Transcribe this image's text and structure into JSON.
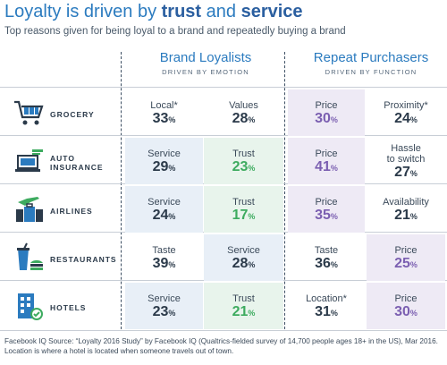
{
  "title": {
    "prefix": "Loyalty is driven by ",
    "bold1": "trust",
    "mid": " and ",
    "bold2": "service"
  },
  "subtitle": "Top reasons given for being loyal to a brand and repeatedly buying a brand",
  "columns": [
    {
      "heading": "Brand Loyalists",
      "sub": "DRIVEN BY EMOTION"
    },
    {
      "heading": "Repeat Purchasers",
      "sub": "DRIVEN BY FUNCTION"
    }
  ],
  "rows": [
    {
      "label": "GROCERY",
      "icon": "shopping-cart-icon",
      "cells": [
        {
          "label": "Local*",
          "value": "33"
        },
        {
          "label": "Values",
          "value": "28"
        },
        {
          "label": "Price",
          "value": "30"
        },
        {
          "label": "Proximity*",
          "value": "24"
        }
      ]
    },
    {
      "label": "AUTO\nINSURANCE",
      "icon": "laptop-insurance-icon",
      "cells": [
        {
          "label": "Service",
          "value": "29"
        },
        {
          "label": "Trust",
          "value": "23"
        },
        {
          "label": "Price",
          "value": "41"
        },
        {
          "label": "Hassle\nto switch",
          "value": "27"
        }
      ]
    },
    {
      "label": "AIRLINES",
      "icon": "airplane-luggage-icon",
      "cells": [
        {
          "label": "Service",
          "value": "24"
        },
        {
          "label": "Trust",
          "value": "17"
        },
        {
          "label": "Price",
          "value": "35"
        },
        {
          "label": "Availability",
          "value": "21"
        }
      ]
    },
    {
      "label": "RESTAURANTS",
      "icon": "drink-burger-icon",
      "cells": [
        {
          "label": "Taste",
          "value": "39"
        },
        {
          "label": "Service",
          "value": "28"
        },
        {
          "label": "Taste",
          "value": "36"
        },
        {
          "label": "Price",
          "value": "25"
        }
      ]
    },
    {
      "label": "HOTELS",
      "icon": "hotel-building-icon",
      "cells": [
        {
          "label": "Service",
          "value": "23"
        },
        {
          "label": "Trust",
          "value": "21"
        },
        {
          "label": "Location*",
          "value": "31"
        },
        {
          "label": "Price",
          "value": "30"
        }
      ]
    }
  ],
  "percent_sign": "%",
  "footer": [
    "Facebook IQ Source: “Loyalty 2016 Study” by Facebook IQ (Qualtrics-fielded survey of 14,700 people ages 18+ in the US), Mar 2016.",
    "Location is where a hotel is located when someone travels out of town."
  ],
  "colors": {
    "accent": "#2b7bbf",
    "trust": "#3dab5f",
    "price": "#7b5fb1",
    "emotion": "#2b3a4a"
  },
  "chart_data": {
    "type": "table",
    "title": "Loyalty is driven by trust and service",
    "subtitle": "Top reasons given for being loyal to a brand and repeatedly buying a brand",
    "groups": [
      "Brand Loyalists",
      "Repeat Purchasers"
    ],
    "categories": [
      "GROCERY",
      "AUTO INSURANCE",
      "AIRLINES",
      "RESTAURANTS",
      "HOTELS"
    ],
    "unit": "%",
    "values": {
      "GROCERY": {
        "Brand Loyalists": [
          [
            "Local*",
            33
          ],
          [
            "Values",
            28
          ]
        ],
        "Repeat Purchasers": [
          [
            "Price",
            30
          ],
          [
            "Proximity*",
            24
          ]
        ]
      },
      "AUTO INSURANCE": {
        "Brand Loyalists": [
          [
            "Service",
            29
          ],
          [
            "Trust",
            23
          ]
        ],
        "Repeat Purchasers": [
          [
            "Price",
            41
          ],
          [
            "Hassle to switch",
            27
          ]
        ]
      },
      "AIRLINES": {
        "Brand Loyalists": [
          [
            "Service",
            24
          ],
          [
            "Trust",
            17
          ]
        ],
        "Repeat Purchasers": [
          [
            "Price",
            35
          ],
          [
            "Availability",
            21
          ]
        ]
      },
      "RESTAURANTS": {
        "Brand Loyalists": [
          [
            "Taste",
            39
          ],
          [
            "Service",
            28
          ]
        ],
        "Repeat Purchasers": [
          [
            "Taste",
            36
          ],
          [
            "Price",
            25
          ]
        ]
      },
      "HOTELS": {
        "Brand Loyalists": [
          [
            "Service",
            23
          ],
          [
            "Trust",
            21
          ]
        ],
        "Repeat Purchasers": [
          [
            "Location*",
            31
          ],
          [
            "Price",
            30
          ]
        ]
      }
    }
  }
}
